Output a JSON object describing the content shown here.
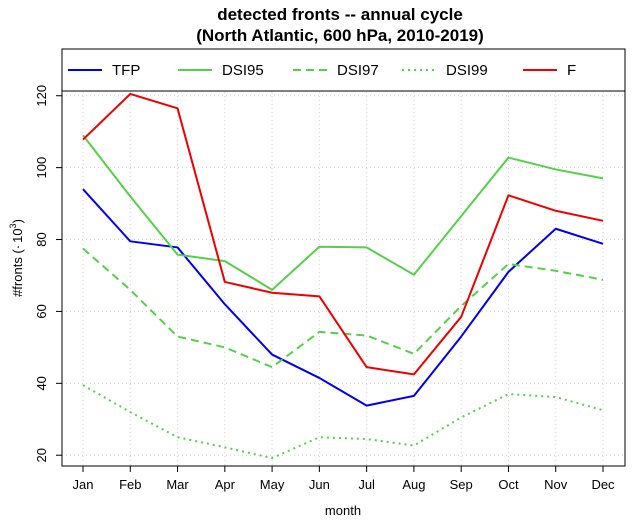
{
  "chart_data": {
    "type": "line",
    "title": "detected fronts -- annual cycle",
    "subtitle": "(North Atlantic, 600 hPa, 2010-2019)",
    "xlabel": "month",
    "ylabel": "#fronts (·10³)",
    "ylabel_main": "#fronts (",
    "ylabel_dot": "·",
    "ylabel_base": "10",
    "ylabel_exp": "3",
    "ylabel_close": ")",
    "categories": [
      "Jan",
      "Feb",
      "Mar",
      "Apr",
      "May",
      "Jun",
      "Jul",
      "Aug",
      "Sep",
      "Oct",
      "Nov",
      "Dec"
    ],
    "yticks": [
      20,
      40,
      60,
      80,
      100,
      120
    ],
    "ylim": [
      17,
      133
    ],
    "grid": true,
    "legend_position": "top",
    "series": [
      {
        "name": "TFP",
        "color": "#0000ee",
        "dash": "solid",
        "values": [
          94,
          79.5,
          77.8,
          62,
          48,
          41.5,
          33.8,
          36.5,
          53,
          71,
          83,
          78.8
        ]
      },
      {
        "name": "DSI95",
        "color": "#55d048",
        "dash": "solid",
        "values": [
          109,
          92,
          75.8,
          74,
          66,
          78,
          77.8,
          70.2,
          86.5,
          102.8,
          99.5,
          97
        ]
      },
      {
        "name": "DSI97",
        "color": "#55d048",
        "dash": "dashed",
        "values": [
          77.5,
          66,
          53,
          50,
          44.5,
          54.3,
          53.3,
          48.2,
          61.5,
          73.2,
          71.3,
          68.8
        ]
      },
      {
        "name": "DSI99",
        "color": "#55d048",
        "dash": "dotted",
        "values": [
          39.5,
          32,
          25,
          22.2,
          19.2,
          25,
          24.5,
          22.7,
          30.5,
          37,
          36.2,
          32.5
        ]
      },
      {
        "name": "F",
        "color": "#ee0000",
        "dash": "solid",
        "values": [
          107.8,
          120.5,
          116.5,
          68.2,
          65.2,
          64.2,
          44.5,
          42.5,
          58.5,
          92.3,
          88,
          85.2
        ]
      }
    ]
  }
}
